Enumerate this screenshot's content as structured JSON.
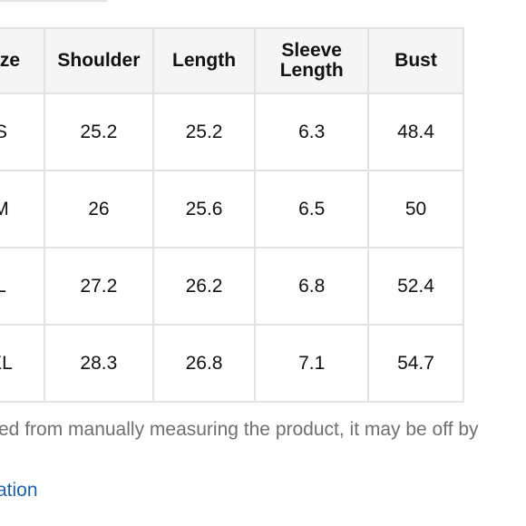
{
  "table": {
    "headers": [
      "Size",
      "Shoulder",
      "Length",
      "Sleeve Length",
      "Bust"
    ],
    "rows": [
      [
        "S",
        "25.2",
        "25.2",
        "6.3",
        "48.4"
      ],
      [
        "M",
        "26",
        "25.6",
        "6.5",
        "50"
      ],
      [
        "L",
        "27.2",
        "26.2",
        "6.8",
        "52.4"
      ],
      [
        "XL",
        "28.3",
        "26.8",
        "7.1",
        "54.7"
      ]
    ]
  },
  "note_text": "ed from manually measuring the product, it may be off by",
  "link_text": "ation"
}
